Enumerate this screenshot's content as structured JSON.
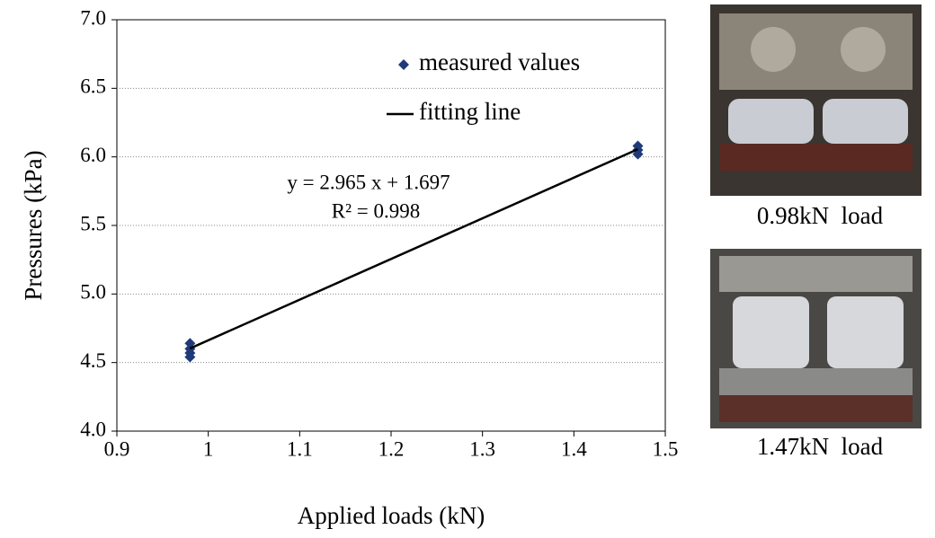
{
  "chart_data": {
    "type": "scatter",
    "x_label": "Applied loads (kN)",
    "y_label": "Pressures (kPa)",
    "xlim": [
      0.9,
      1.5
    ],
    "xticks": [
      0.9,
      1,
      1.1,
      1.2,
      1.3,
      1.4,
      1.5
    ],
    "ylim": [
      4.0,
      7.0
    ],
    "yticks": [
      {
        "value": 4.0,
        "label": "4.0"
      },
      {
        "value": 4.5,
        "label": "4.5"
      },
      {
        "value": 5.0,
        "label": "5.0"
      },
      {
        "value": 5.5,
        "label": "5.5"
      },
      {
        "value": 6.0,
        "label": "6.0"
      },
      {
        "value": 6.5,
        "label": "6.5"
      },
      {
        "value": 7.0,
        "label": "7.0"
      }
    ],
    "grid": true,
    "series": [
      {
        "name": "measured values",
        "type": "scatter",
        "color": "#1f3a7a",
        "x": [
          0.98,
          0.98,
          0.98,
          0.98,
          1.47,
          1.47,
          1.47
        ],
        "values": [
          4.64,
          4.6,
          4.57,
          4.54,
          6.08,
          6.05,
          6.02
        ]
      },
      {
        "name": "fitting line",
        "type": "line",
        "color": "#000000",
        "x": [
          0.98,
          1.47
        ],
        "values": [
          4.603,
          6.056
        ]
      }
    ],
    "annotations": [
      "y = 2.965 x + 1.697",
      "R² = 0.998"
    ]
  },
  "images": [
    {
      "caption": "0.98kN  load"
    },
    {
      "caption": "1.47kN  load"
    }
  ]
}
